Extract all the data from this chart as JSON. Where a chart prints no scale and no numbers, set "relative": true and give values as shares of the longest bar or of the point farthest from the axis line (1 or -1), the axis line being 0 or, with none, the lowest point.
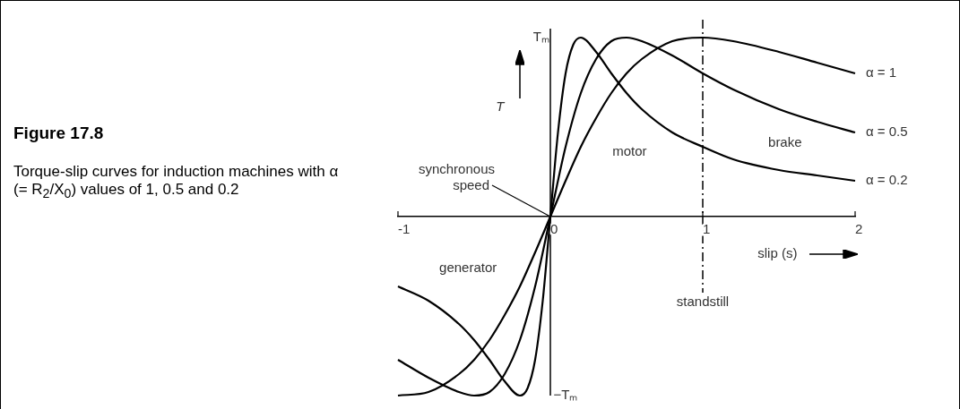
{
  "chart_data": {
    "type": "line",
    "title": "Figure 17.8",
    "subtitle": "Torque-slip curves for induction machines with α (= R$_{2}$/X$_{0}$) values of 1, 0.5 and 0.2",
    "xlabel": "slip (s)",
    "ylabel": "T",
    "xlim": [
      -1,
      2
    ],
    "xticks": [
      -1,
      0,
      1,
      2
    ],
    "relative": true,
    "series": [
      {
        "name": "α = 1",
        "color": "#000000",
        "x": [
          -1,
          -0.8,
          -0.6,
          -0.5,
          -0.4,
          -0.3,
          -0.2,
          -0.1,
          0,
          0.1,
          0.2,
          0.3,
          0.4,
          0.5,
          0.6,
          0.8,
          1,
          1.2,
          1.5,
          1.75,
          2
        ],
        "values": [
          -1,
          -0.98,
          -0.88,
          -0.8,
          -0.69,
          -0.55,
          -0.39,
          -0.2,
          0,
          0.2,
          0.39,
          0.55,
          0.69,
          0.8,
          0.88,
          0.98,
          1,
          0.98,
          0.92,
          0.86,
          0.8
        ]
      },
      {
        "name": "α = 0.5",
        "color": "#000000",
        "x": [
          -1,
          -0.8,
          -0.6,
          -0.5,
          -0.4,
          -0.3,
          -0.2,
          -0.1,
          0,
          0.1,
          0.2,
          0.3,
          0.4,
          0.5,
          0.6,
          0.8,
          1,
          1.2,
          1.5,
          1.75,
          2
        ],
        "values": [
          -0.8,
          -0.9,
          -0.98,
          -1,
          -0.98,
          -0.88,
          -0.69,
          -0.39,
          0,
          0.39,
          0.69,
          0.88,
          0.98,
          1,
          0.98,
          0.9,
          0.8,
          0.71,
          0.6,
          0.53,
          0.47
        ]
      },
      {
        "name": "α = 0.2",
        "color": "#000000",
        "x": [
          -1,
          -0.8,
          -0.6,
          -0.5,
          -0.4,
          -0.3,
          -0.2,
          -0.15,
          -0.1,
          -0.05,
          0,
          0.05,
          0.1,
          0.15,
          0.2,
          0.3,
          0.4,
          0.5,
          0.6,
          0.8,
          1,
          1.2,
          1.5,
          1.75,
          2
        ],
        "values": [
          -0.39,
          -0.47,
          -0.6,
          -0.69,
          -0.8,
          -0.92,
          -1,
          -0.96,
          -0.8,
          -0.47,
          0,
          0.47,
          0.8,
          0.96,
          1,
          0.92,
          0.8,
          0.69,
          0.6,
          0.47,
          0.39,
          0.32,
          0.26,
          0.23,
          0.2
        ]
      }
    ],
    "ref_lines": [
      {
        "axis": "x",
        "value": 1,
        "label": "standstill",
        "line_style": "dashed",
        "color": "#000000"
      }
    ],
    "annotations": [
      {
        "text": "synchronous speed",
        "x": 0,
        "y": 0
      },
      "motor",
      "brake",
      "generator",
      "Tₘ",
      "−Tₘ"
    ],
    "grid": false,
    "legend": false,
    "marker": "none",
    "line_style": "solid"
  }
}
